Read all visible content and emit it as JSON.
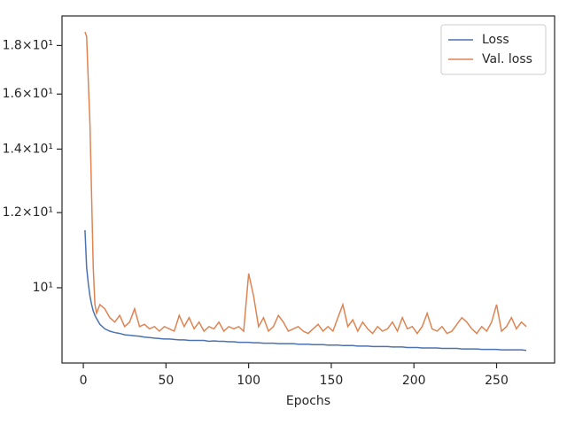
{
  "chart_data": {
    "type": "line",
    "xlabel": "Epochs",
    "log_y": true,
    "grid": false,
    "legend": "upper right",
    "xlim": [
      -12.9,
      285.1
    ],
    "ylim": [
      8.33,
      19.34
    ],
    "xticks": [
      0,
      50,
      100,
      150,
      200,
      250
    ],
    "yticks": [
      {
        "value": 10,
        "label": "10¹"
      },
      {
        "value": 12,
        "label": "1.2×10¹"
      },
      {
        "value": 14,
        "label": "1.4×10¹"
      },
      {
        "value": 16,
        "label": "1.6×10¹"
      },
      {
        "value": 18,
        "label": "1.8×10¹"
      }
    ],
    "x": [
      1,
      2,
      3,
      4,
      5,
      6,
      7,
      8,
      10,
      13,
      16,
      19,
      22,
      25,
      28,
      31,
      34,
      37,
      40,
      43,
      46,
      49,
      52,
      55,
      58,
      61,
      64,
      67,
      70,
      73,
      76,
      79,
      82,
      85,
      88,
      91,
      94,
      97,
      100,
      103,
      106,
      109,
      112,
      115,
      118,
      121,
      124,
      127,
      130,
      133,
      136,
      139,
      142,
      145,
      148,
      151,
      154,
      157,
      160,
      163,
      166,
      169,
      172,
      175,
      178,
      181,
      184,
      187,
      190,
      193,
      196,
      199,
      202,
      205,
      208,
      211,
      214,
      217,
      220,
      223,
      226,
      229,
      232,
      235,
      238,
      241,
      244,
      247,
      250,
      253,
      256,
      259,
      262,
      265,
      268
    ],
    "series": [
      {
        "name": "Loss",
        "color": "#4c72b0",
        "values": [
          11.5,
          10.5,
          10.1,
          9.8,
          9.6,
          9.45,
          9.35,
          9.28,
          9.15,
          9.05,
          9.0,
          8.97,
          8.95,
          8.92,
          8.91,
          8.9,
          8.89,
          8.87,
          8.86,
          8.85,
          8.84,
          8.83,
          8.83,
          8.82,
          8.81,
          8.81,
          8.8,
          8.8,
          8.8,
          8.8,
          8.78,
          8.79,
          8.78,
          8.78,
          8.77,
          8.77,
          8.76,
          8.76,
          8.76,
          8.75,
          8.75,
          8.74,
          8.74,
          8.74,
          8.73,
          8.73,
          8.73,
          8.73,
          8.72,
          8.72,
          8.72,
          8.71,
          8.71,
          8.71,
          8.7,
          8.7,
          8.7,
          8.69,
          8.69,
          8.69,
          8.68,
          8.68,
          8.68,
          8.67,
          8.67,
          8.67,
          8.67,
          8.66,
          8.66,
          8.66,
          8.65,
          8.65,
          8.65,
          8.64,
          8.64,
          8.64,
          8.64,
          8.63,
          8.63,
          8.63,
          8.63,
          8.62,
          8.62,
          8.62,
          8.62,
          8.61,
          8.61,
          8.61,
          8.61,
          8.6,
          8.6,
          8.6,
          8.6,
          8.6,
          8.59
        ]
      },
      {
        "name": "Val. loss",
        "color": "#dd8452",
        "values": [
          18.6,
          18.4,
          16.5,
          14.9,
          12.5,
          10.5,
          9.6,
          9.4,
          9.6,
          9.5,
          9.3,
          9.2,
          9.35,
          9.1,
          9.2,
          9.5,
          9.1,
          9.15,
          9.05,
          9.1,
          9.0,
          9.1,
          9.05,
          9.0,
          9.35,
          9.1,
          9.3,
          9.05,
          9.2,
          9.0,
          9.1,
          9.05,
          9.2,
          9.0,
          9.1,
          9.05,
          9.1,
          9.0,
          10.35,
          9.8,
          9.1,
          9.3,
          9.0,
          9.1,
          9.35,
          9.2,
          9.0,
          9.05,
          9.1,
          9.0,
          8.95,
          9.05,
          9.15,
          9.0,
          9.1,
          9.0,
          9.3,
          9.6,
          9.1,
          9.25,
          9.0,
          9.2,
          9.05,
          8.95,
          9.1,
          9.0,
          9.05,
          9.2,
          9.0,
          9.3,
          9.05,
          9.1,
          8.95,
          9.1,
          9.4,
          9.05,
          9.0,
          9.1,
          8.95,
          9.0,
          9.15,
          9.3,
          9.2,
          9.05,
          8.95,
          9.1,
          9.0,
          9.2,
          9.6,
          9.0,
          9.1,
          9.3,
          9.05,
          9.2,
          9.1
        ]
      }
    ]
  }
}
